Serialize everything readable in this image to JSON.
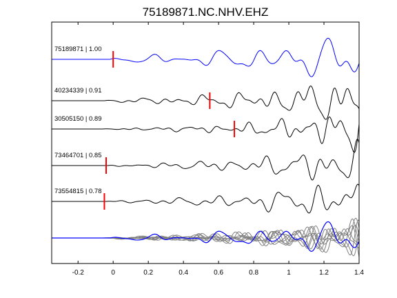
{
  "chart_data": {
    "type": "line",
    "title": "75189871.NC.NHV.EHZ",
    "xlabel": "",
    "ylabel": "",
    "xlim": [
      -0.35,
      1.4
    ],
    "xticks": [
      -0.2,
      0,
      0.2,
      0.4,
      0.6,
      0.8,
      1,
      1.2,
      1.4
    ],
    "xtick_labels": [
      "-0.2",
      "0",
      "0.2",
      "0.4",
      "0.6",
      "0.8",
      "1",
      "1.2",
      "1.4"
    ],
    "grid": false,
    "legend": "none",
    "colors": {
      "reference_trace": "#0000ff",
      "matched_trace": "#000000",
      "overlay_trace": "#808080",
      "pick_marker": "#ff0000",
      "axes": "#000000"
    },
    "series": [
      {
        "label": "75189871 | 1.00",
        "color": "#0000ff",
        "pick_time": 0.0,
        "wave": {
          "onset": -0.02,
          "decay": 3.4,
          "amplitude": 0.55,
          "components": [
            [
              5.0,
              0.3,
              1.0
            ],
            [
              8.2,
              1.1,
              0.6
            ],
            [
              3.1,
              2.0,
              0.7
            ],
            [
              12.0,
              0.5,
              0.2
            ]
          ]
        }
      },
      {
        "label": "40234339 | 0.91",
        "color": "#000000",
        "pick_time": 0.55,
        "wave": {
          "onset": -0.05,
          "decay": 4.2,
          "amplitude": 0.5,
          "components": [
            [
              5.3,
              0.9,
              1.0
            ],
            [
              9.4,
              0.2,
              0.8
            ],
            [
              14.5,
              1.7,
              0.5
            ],
            [
              3.4,
              2.5,
              0.5
            ]
          ]
        }
      },
      {
        "label": "30505150 | 0.89",
        "color": "#000000",
        "pick_time": 0.69,
        "wave": {
          "onset": -0.06,
          "decay": 5.4,
          "amplitude": 0.45,
          "components": [
            [
              6.0,
              1.5,
              1.0
            ],
            [
              11.0,
              0.4,
              0.8
            ],
            [
              15.5,
              2.2,
              0.5
            ],
            [
              4.0,
              0.8,
              0.4
            ]
          ]
        }
      },
      {
        "label": "73464701 | 0.85",
        "color": "#000000",
        "pick_time": -0.04,
        "wave": {
          "onset": -0.03,
          "decay": 4.6,
          "amplitude": 0.5,
          "components": [
            [
              5.5,
              2.1,
              1.0
            ],
            [
              10.0,
              1.0,
              0.7
            ],
            [
              13.5,
              0.3,
              0.5
            ],
            [
              3.6,
              1.4,
              0.4
            ]
          ]
        }
      },
      {
        "label": "73554815 | 0.78",
        "color": "#000000",
        "pick_time": -0.05,
        "wave": {
          "onset": -0.04,
          "decay": 4.6,
          "amplitude": 0.5,
          "components": [
            [
              5.1,
              0.6,
              1.0
            ],
            [
              9.0,
              2.4,
              0.7
            ],
            [
              12.5,
              1.2,
              0.6
            ],
            [
              3.2,
              0.1,
              0.4
            ]
          ]
        }
      }
    ],
    "stack_overlay": {
      "reference_color": "#0000ff",
      "member_color": "#808080",
      "amplitude": 0.32
    }
  }
}
